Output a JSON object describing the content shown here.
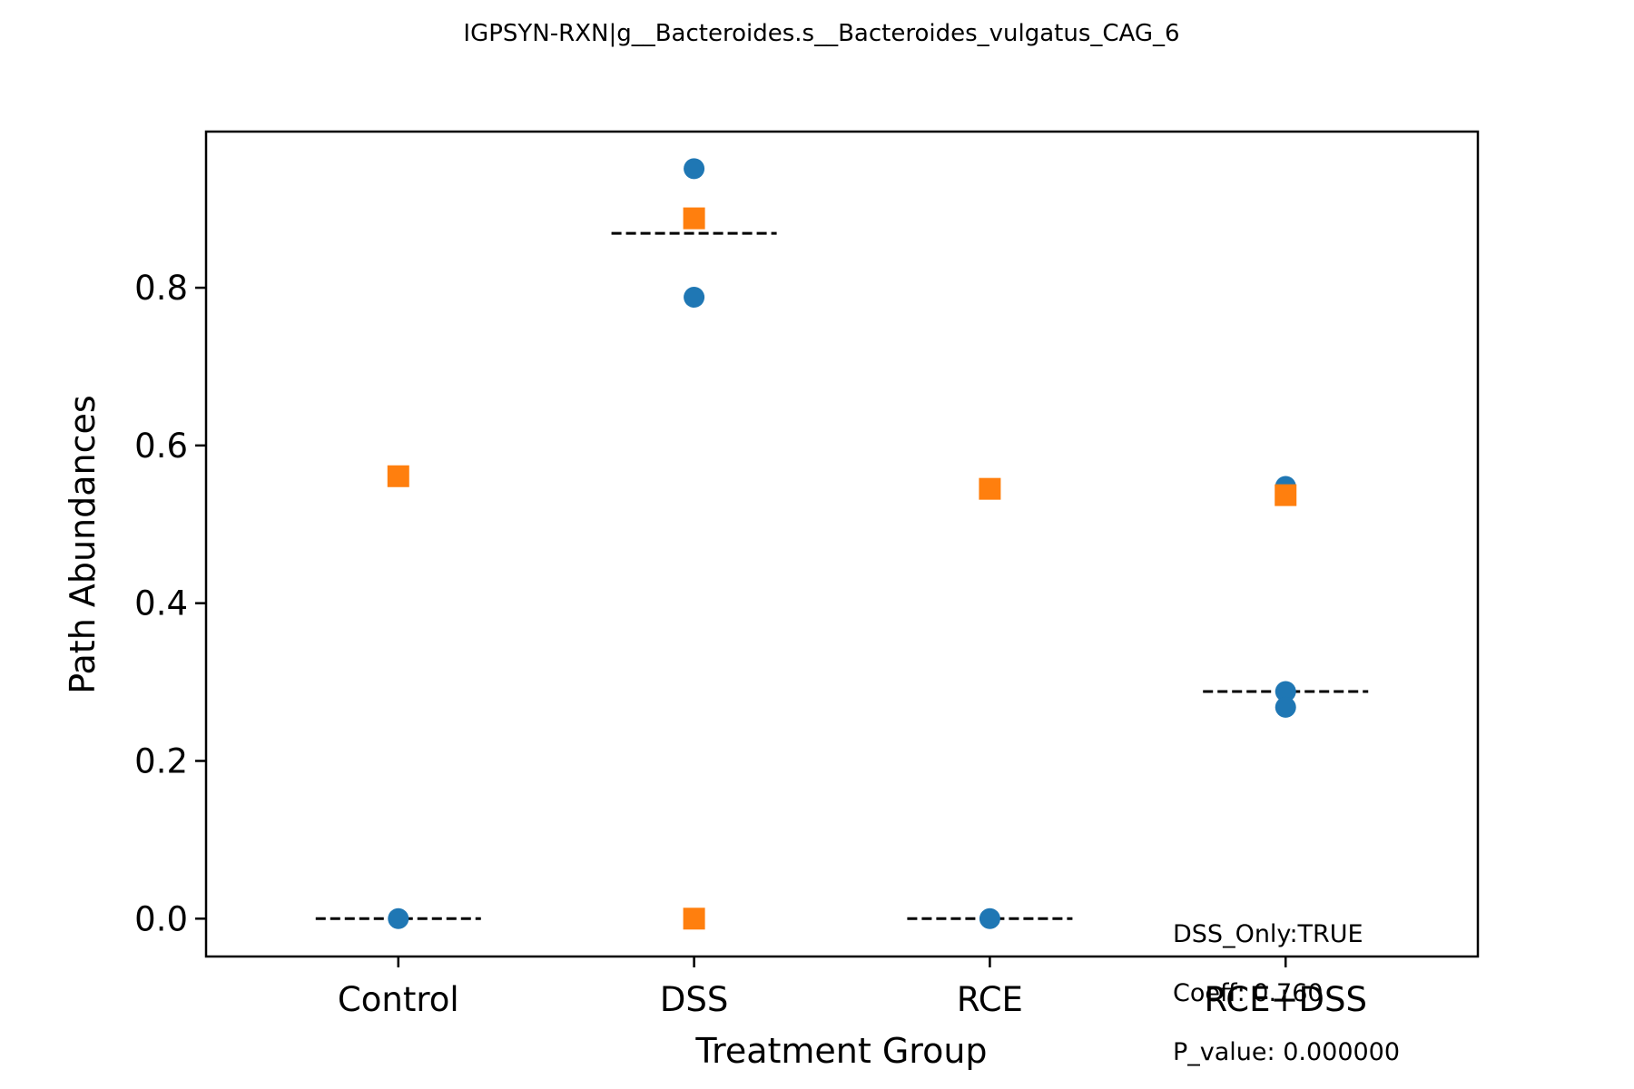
{
  "chart_data": {
    "type": "scatter",
    "title": "IGPSYN-RXN|g__Bacteroides.s__Bacteroides_vulgatus_CAG_6",
    "xlabel": "Treatment Group",
    "ylabel": "Path Abundances",
    "categories": [
      "Control",
      "DSS",
      "RCE",
      "RCE+DSS"
    ],
    "ylim": [
      -0.048,
      0.998
    ],
    "yticks": [
      "0.0",
      "0.2",
      "0.4",
      "0.6",
      "0.8"
    ],
    "ytick_values": [
      0.0,
      0.2,
      0.4,
      0.6,
      0.8
    ],
    "grid": false,
    "colors": {
      "circle": "#1f77b4",
      "square": "#ff7f0e",
      "median": "#000000"
    },
    "series": [
      {
        "marker": "circle",
        "points": [
          {
            "category": "Control",
            "y": 0.0
          },
          {
            "category": "DSS",
            "y": 0.951
          },
          {
            "category": "DSS",
            "y": 0.788
          },
          {
            "category": "RCE",
            "y": 0.0
          },
          {
            "category": "RCE+DSS",
            "y": 0.548
          },
          {
            "category": "RCE+DSS",
            "y": 0.288
          },
          {
            "category": "RCE+DSS",
            "y": 0.268
          }
        ]
      },
      {
        "marker": "square",
        "points": [
          {
            "category": "Control",
            "y": 0.561
          },
          {
            "category": "DSS",
            "y": 0.888
          },
          {
            "category": "DSS",
            "y": 0.0
          },
          {
            "category": "RCE",
            "y": 0.545
          },
          {
            "category": "RCE+DSS",
            "y": 0.537
          }
        ]
      }
    ],
    "medians": [
      {
        "category": "Control",
        "y": 0.0
      },
      {
        "category": "DSS",
        "y": 0.869
      },
      {
        "category": "RCE",
        "y": 0.0
      },
      {
        "category": "RCE+DSS",
        "y": 0.288
      }
    ],
    "annotations": [
      "DSS_Only:TRUE",
      "Coeff: 0.760",
      "P_value: 0.000000"
    ]
  }
}
